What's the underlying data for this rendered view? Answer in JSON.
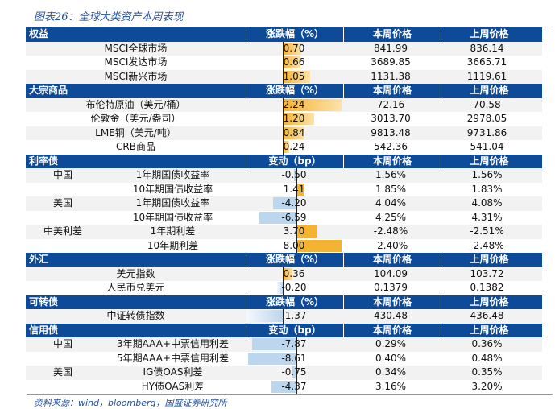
{
  "title": "图表26：全球大类资产本周表现",
  "source": "资料来源：wind，bloomberg，国盛证券研究所",
  "colors": {
    "header": "#0d4a97",
    "pos": "#f5b333",
    "neg": "#bcd6ee"
  },
  "sections": [
    {
      "name": "权益",
      "col1": "涨跌幅（%）",
      "col2": "本周价格",
      "col3": "上周价格",
      "unit": "pct",
      "rows": [
        {
          "region": "",
          "item": "MSCI全球市场",
          "change": "0.70",
          "cur": "841.99",
          "prev": "836.14"
        },
        {
          "region": "",
          "item": "MSCI发达市场",
          "change": "0.66",
          "cur": "3689.85",
          "prev": "3665.71"
        },
        {
          "region": "",
          "item": "MSCI新兴市场",
          "change": "1.05",
          "cur": "1131.38",
          "prev": "1119.61"
        }
      ]
    },
    {
      "name": "大宗商品",
      "col1": "涨跌幅（%）",
      "col2": "本周价格",
      "col3": "上周价格",
      "unit": "pct",
      "rows": [
        {
          "region": "",
          "item": "布伦特原油（美元/桶）",
          "change": "2.24",
          "cur": "72.16",
          "prev": "70.58"
        },
        {
          "region": "",
          "item": "伦敦金（美元/盎司）",
          "change": "1.20",
          "cur": "3013.70",
          "prev": "2978.05"
        },
        {
          "region": "",
          "item": "LME铜（美元/吨）",
          "change": "0.84",
          "cur": "9813.48",
          "prev": "9731.86"
        },
        {
          "region": "",
          "item": "CRB商品",
          "change": "0.24",
          "cur": "542.36",
          "prev": "541.04"
        }
      ]
    },
    {
      "name": "利率债",
      "col1": "变动（bp）",
      "col2": "本周价格",
      "col3": "上周价格",
      "unit": "bp",
      "rows": [
        {
          "region": "中国",
          "item": "1年期国债收益率",
          "change": "-0.50",
          "cur": "1.56%",
          "prev": "1.56%"
        },
        {
          "region": "",
          "item": "10年期国债收益率",
          "change": "1.41",
          "cur": "1.85%",
          "prev": "1.83%"
        },
        {
          "region": "美国",
          "item": "1年期国债收益率",
          "change": "-4.20",
          "cur": "4.04%",
          "prev": "4.08%"
        },
        {
          "region": "",
          "item": "10年期国债收益率",
          "change": "-6.59",
          "cur": "4.25%",
          "prev": "4.31%"
        },
        {
          "region": "中美利差",
          "item": "1年期利差",
          "change": "3.70",
          "cur": "-2.48%",
          "prev": "-2.51%"
        },
        {
          "region": "",
          "item": "10年期利差",
          "change": "8.00",
          "cur": "-2.40%",
          "prev": "-2.48%"
        }
      ]
    },
    {
      "name": "外汇",
      "col1": "涨跌幅（%）",
      "col2": "本周价格",
      "col3": "上周价格",
      "unit": "pct",
      "rows": [
        {
          "region": "",
          "item": "美元指数",
          "change": "0.36",
          "cur": "104.09",
          "prev": "103.72"
        },
        {
          "region": "",
          "item": "人民币兑美元",
          "change": "-0.20",
          "cur": "0.1379",
          "prev": "0.1382"
        }
      ]
    },
    {
      "name": "可转债",
      "col1": "涨跌幅（%）",
      "col2": "本周价格",
      "col3": "上周价格",
      "unit": "pct",
      "rows": [
        {
          "region": "",
          "item": "中证转债指数",
          "change": "-1.37",
          "cur": "430.48",
          "prev": "436.48"
        }
      ]
    },
    {
      "name": "信用债",
      "col1": "变动（bp）",
      "col2": "本周价格",
      "col3": "上周价格",
      "unit": "bp",
      "rows": [
        {
          "region": "中国",
          "item": "3年期AAA+中票信用利差",
          "change": "-7.87",
          "cur": "0.29%",
          "prev": "0.36%"
        },
        {
          "region": "",
          "item": "5年期AAA+中票信用利差",
          "change": "-8.61",
          "cur": "0.40%",
          "prev": "0.48%"
        },
        {
          "region": "美国",
          "item": "IG债OAS利差",
          "change": "-0.75",
          "cur": "0.34%",
          "prev": "0.35%"
        },
        {
          "region": "",
          "item": "HY债OAS利差",
          "change": "-4.37",
          "cur": "3.16%",
          "prev": "3.20%"
        }
      ]
    }
  ]
}
